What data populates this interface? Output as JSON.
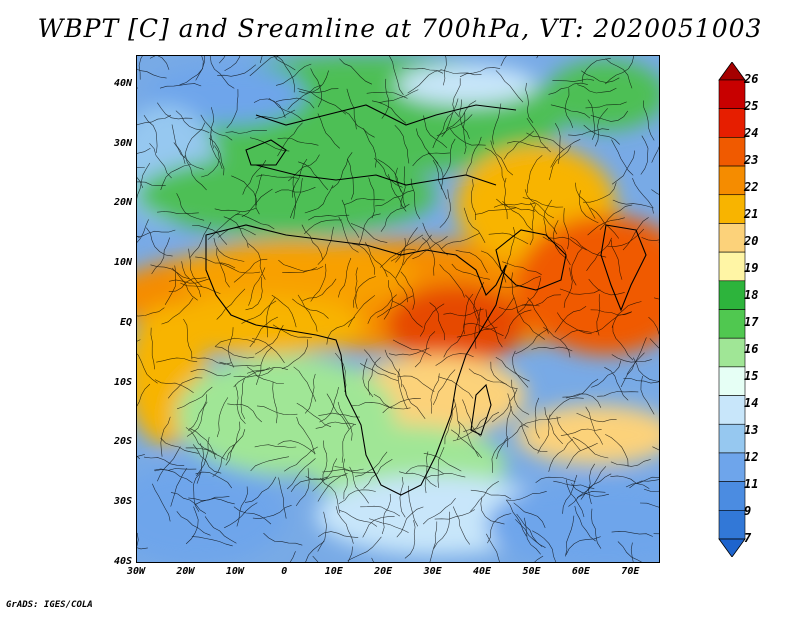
{
  "title": "WBPT [C] and Sreamline at 700hPa, VT: 2020051003",
  "credit": "GrADS: IGES/COLA",
  "map": {
    "lat_labels": [
      "40N",
      "30N",
      "20N",
      "10N",
      "EQ",
      "10S",
      "20S",
      "30S",
      "40S"
    ],
    "lat_values": [
      40,
      30,
      20,
      10,
      0,
      -10,
      -20,
      -30,
      -40
    ],
    "lon_labels": [
      "30W",
      "20W",
      "10W",
      "0",
      "10E",
      "20E",
      "30E",
      "40E",
      "50E",
      "60E",
      "70E"
    ],
    "lon_values": [
      -30,
      -20,
      -10,
      0,
      10,
      20,
      30,
      40,
      50,
      60,
      70
    ],
    "lat_range": [
      -40,
      45
    ],
    "lon_range": [
      -30,
      76
    ]
  },
  "colorbar": {
    "labels": [
      "26",
      "25",
      "24",
      "23",
      "22",
      "21",
      "20",
      "19",
      "18",
      "17",
      "16",
      "15",
      "14",
      "13",
      "12",
      "11",
      "9",
      "7"
    ],
    "colors": [
      "#a50000",
      "#c80000",
      "#e61e00",
      "#f05a00",
      "#f58c00",
      "#f8b400",
      "#fcd27a",
      "#fff5a5",
      "#2db43c",
      "#50c850",
      "#a0e696",
      "#e6fff5",
      "#c8e6fa",
      "#96c8f0",
      "#6ea5eb",
      "#4b8ce1",
      "#3278d7",
      "#1e64cd"
    ]
  }
}
